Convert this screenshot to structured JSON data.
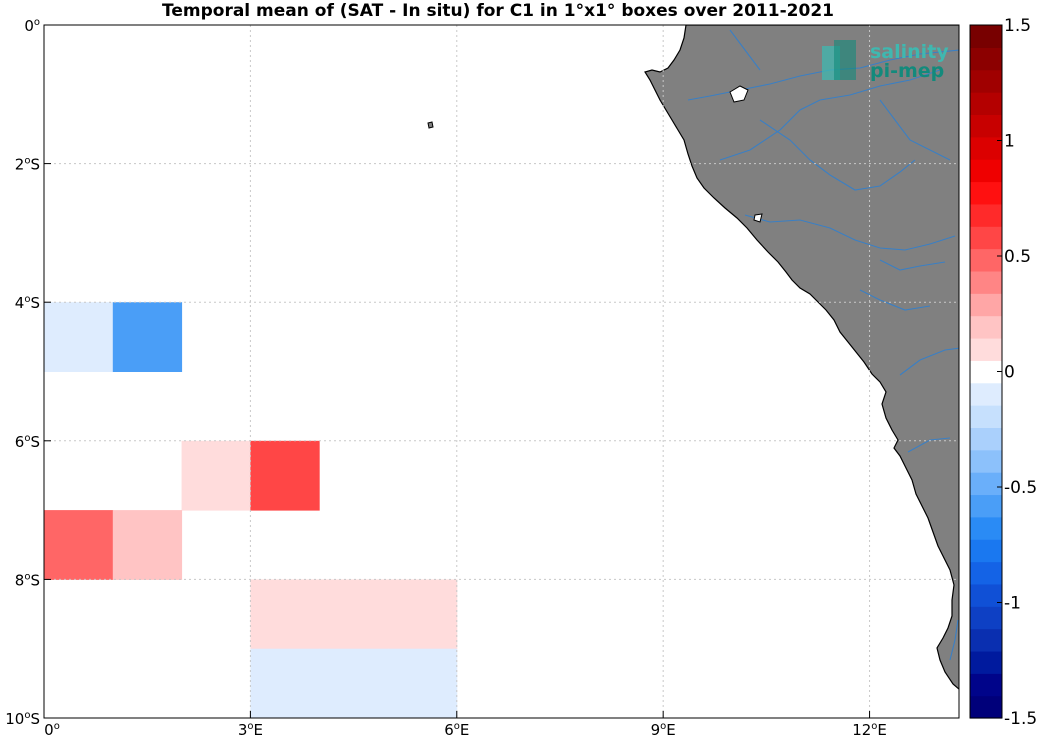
{
  "title": "Temporal mean of (SAT - In situ) for C1 in 1°x1° boxes over 2011-2021",
  "logo": {
    "line1": "salinity",
    "line2": "pi-mep"
  },
  "map": {
    "lon_range": [
      0,
      13.3
    ],
    "lat_range": [
      -10,
      0
    ],
    "x_ticks": [
      {
        "value": 0,
        "label": "0",
        "sup": "o",
        "suffix": ""
      },
      {
        "value": 3,
        "label": "3",
        "sup": "o",
        "suffix": "E"
      },
      {
        "value": 6,
        "label": "6",
        "sup": "o",
        "suffix": "E"
      },
      {
        "value": 9,
        "label": "9",
        "sup": "o",
        "suffix": "E"
      },
      {
        "value": 12,
        "label": "12",
        "sup": "o",
        "suffix": "E"
      }
    ],
    "y_ticks": [
      {
        "value": 0,
        "label": "0",
        "sup": "o",
        "suffix": ""
      },
      {
        "value": -2,
        "label": "2",
        "sup": "o",
        "suffix": "S"
      },
      {
        "value": -4,
        "label": "4",
        "sup": "o",
        "suffix": "S"
      },
      {
        "value": -6,
        "label": "6",
        "sup": "o",
        "suffix": "S"
      },
      {
        "value": -8,
        "label": "8",
        "sup": "o",
        "suffix": "S"
      },
      {
        "value": -10,
        "label": "10",
        "sup": "o",
        "suffix": "S"
      }
    ],
    "grid": true,
    "land_color": "#808080",
    "river_color": "#3a7fc4"
  },
  "chart_data": {
    "type": "heatmap",
    "title": "Temporal mean of (SAT - In situ) for C1 in 1°x1° boxes over 2011-2021",
    "xlabel": "",
    "ylabel": "",
    "xlim": [
      0,
      13.3
    ],
    "ylim": [
      -10,
      0
    ],
    "cells": [
      {
        "lon": 0,
        "lat": -4,
        "value": -0.1
      },
      {
        "lon": 1,
        "lat": -4,
        "value": -0.55
      },
      {
        "lon": 2,
        "lat": -6,
        "value": 0.1
      },
      {
        "lon": 3,
        "lat": -6,
        "value": 0.65
      },
      {
        "lon": 0,
        "lat": -7,
        "value": 0.5
      },
      {
        "lon": 1,
        "lat": -7,
        "value": 0.25
      },
      {
        "lon": 3,
        "lat": -8,
        "value": 0.1
      },
      {
        "lon": 4,
        "lat": -8,
        "value": 0.1
      },
      {
        "lon": 5,
        "lat": -8,
        "value": 0.1
      },
      {
        "lon": 3,
        "lat": -9,
        "value": -0.1
      },
      {
        "lon": 4,
        "lat": -9,
        "value": -0.1
      },
      {
        "lon": 5,
        "lat": -9,
        "value": -0.1
      }
    ]
  },
  "colorbar": {
    "range": [
      -1.5,
      1.5
    ],
    "step": 0.1,
    "ticks": [
      {
        "value": 1.5,
        "label": "1.5"
      },
      {
        "value": 1,
        "label": "1"
      },
      {
        "value": 0.5,
        "label": "0.5"
      },
      {
        "value": 0,
        "label": "0"
      },
      {
        "value": -0.5,
        "label": "-0.5"
      },
      {
        "value": -1,
        "label": "-1"
      },
      {
        "value": -1.5,
        "label": "-1.5"
      }
    ],
    "colors": [
      "#00007a",
      "#00048a",
      "#001a9e",
      "#0a2fb0",
      "#0e40c4",
      "#1050d6",
      "#1463e6",
      "#1a78f0",
      "#2a8bf5",
      "#4a9ef7",
      "#6aaffa",
      "#8cc1fb",
      "#aad0fc",
      "#c6e0fd",
      "#deecfe",
      "#ffffff",
      "#ffdcdc",
      "#ffc4c4",
      "#ffa6a6",
      "#ff8585",
      "#ff6666",
      "#ff4646",
      "#ff2a2a",
      "#ff1010",
      "#ef0000",
      "#dc0000",
      "#c80000",
      "#b40000",
      "#a00000",
      "#8c0000",
      "#780000"
    ]
  }
}
